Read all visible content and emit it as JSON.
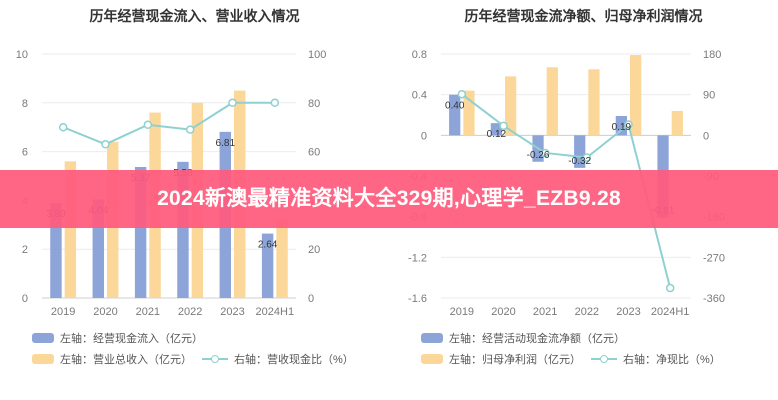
{
  "banner": {
    "text": "2024新澳最精准资料大全329期,心理学_EZB9.28"
  },
  "colors": {
    "blue_bar": "#8da4d9",
    "yellow_bar": "#fbd79a",
    "line": "#8fd0d0",
    "banner": "#ff5a7d"
  },
  "chart_data": [
    {
      "type": "bar",
      "title": "历年经营现金流入、营业收入情况",
      "categories": [
        "2019",
        "2020",
        "2021",
        "2022",
        "2023",
        "2024H1"
      ],
      "series": [
        {
          "name": "左轴：经营现金流入（亿元）",
          "axis": "left",
          "kind": "bar",
          "values": [
            3.89,
            4.04,
            5.37,
            5.58,
            6.81,
            2.64
          ],
          "data_labels": [
            "3.89",
            "4.04",
            "5.37",
            "5.58",
            "6.81",
            "2.64"
          ]
        },
        {
          "name": "左轴：营业总收入（亿元）",
          "axis": "left",
          "kind": "bar",
          "values": [
            5.6,
            6.4,
            7.6,
            8.0,
            8.5,
            3.2
          ]
        },
        {
          "name": "右轴：营收现金比（%）",
          "axis": "right",
          "kind": "line",
          "values": [
            70,
            63,
            71,
            69,
            80,
            80
          ]
        }
      ],
      "yleft_ticks": [
        "0",
        "2",
        "4",
        "6",
        "8",
        "10"
      ],
      "yright_ticks": [
        "0",
        "20",
        "40",
        "60",
        "80",
        "100"
      ],
      "ylim_left": [
        0,
        10
      ],
      "ylim_right": [
        0,
        100
      ],
      "grid": true,
      "legend": [
        {
          "label": "左轴：经营现金流入（亿元）",
          "swatch": "blue-bar"
        },
        {
          "label": "左轴：营业总收入（亿元）",
          "swatch": "yellow-bar"
        },
        {
          "label": "右轴：营收现金比（%）",
          "swatch": "line"
        }
      ],
      "legend_position": "bottom"
    },
    {
      "type": "bar",
      "title": "历年经营现金流净额、归母净利润情况",
      "categories": [
        "2019",
        "2020",
        "2021",
        "2022",
        "2023",
        "2024H1"
      ],
      "series": [
        {
          "name": "左轴：经营活动现金流净额（亿元）",
          "axis": "left",
          "kind": "bar",
          "values": [
            0.4,
            0.12,
            -0.26,
            -0.32,
            0.19,
            -0.81
          ],
          "data_labels": [
            "0.40",
            "0.12",
            "-0.26",
            "-0.32",
            "0.19",
            "-0.81"
          ]
        },
        {
          "name": "左轴：归母净利润（亿元）",
          "axis": "left",
          "kind": "bar",
          "values": [
            0.44,
            0.58,
            0.67,
            0.65,
            0.79,
            0.24
          ]
        },
        {
          "name": "右轴：净现比（%）",
          "axis": "right",
          "kind": "line",
          "values": [
            91,
            21,
            -39,
            -49,
            24,
            -338
          ]
        }
      ],
      "yleft_ticks": [
        "-1.6",
        "-1.2",
        "-0.8",
        "-0.4",
        "0",
        "0.4",
        "0.8"
      ],
      "yright_ticks": [
        "-360",
        "-270",
        "-180",
        "-90",
        "0",
        "90",
        "180"
      ],
      "ylim_left": [
        -1.6,
        0.8
      ],
      "ylim_right": [
        -360,
        180
      ],
      "grid": true,
      "legend": [
        {
          "label": "左轴：经营活动现金流净额（亿元）",
          "swatch": "blue-bar"
        },
        {
          "label": "左轴：归母净利润（亿元）",
          "swatch": "yellow-bar"
        },
        {
          "label": "右轴：净现比（%）",
          "swatch": "line"
        }
      ],
      "legend_position": "bottom"
    }
  ]
}
